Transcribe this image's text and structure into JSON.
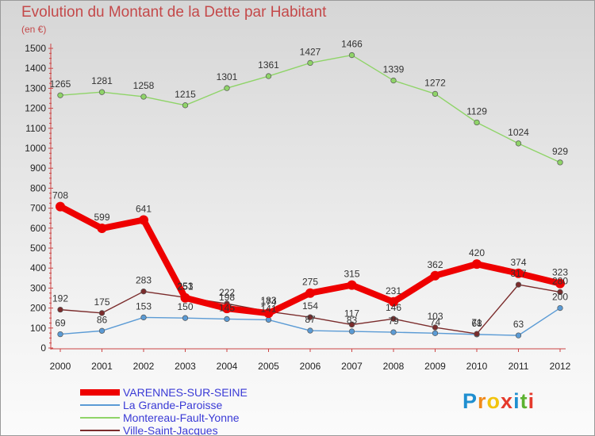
{
  "chart_data": {
    "type": "line",
    "title": "Evolution du Montant de la Dette par Habitant",
    "subtitle": "(en €)",
    "categories": [
      "2000",
      "2001",
      "2002",
      "2003",
      "2004",
      "2005",
      "2006",
      "2007",
      "2008",
      "2009",
      "2010",
      "2011",
      "2012"
    ],
    "ylim": [
      0,
      1500
    ],
    "yticks": [
      0,
      100,
      200,
      300,
      400,
      500,
      600,
      700,
      800,
      900,
      1000,
      1100,
      1200,
      1300,
      1400,
      1500
    ],
    "grid": false,
    "legend_position": "bottom-left",
    "series": [
      {
        "name": "VARENNES-SUR-SEINE",
        "color": "#ee0000",
        "values": [
          708,
          599,
          641,
          251,
          198,
          174,
          275,
          315,
          231,
          362,
          420,
          374,
          323
        ]
      },
      {
        "name": "La Grande-Paroisse",
        "color": "#5b9bd5",
        "values": [
          69,
          86,
          153,
          150,
          145,
          141,
          87,
          83,
          79,
          74,
          68,
          63,
          200
        ]
      },
      {
        "name": "Montereau-Fault-Yonne",
        "color": "#8fd468",
        "values": [
          1265,
          1281,
          1258,
          1215,
          1301,
          1361,
          1427,
          1466,
          1339,
          1272,
          1129,
          1024,
          929
        ]
      },
      {
        "name": "Ville-Saint-Jacques",
        "color": "#7b2c2c",
        "values": [
          192,
          175,
          283,
          253,
          222,
          183,
          154,
          117,
          146,
          103,
          71,
          317,
          280
        ]
      }
    ]
  },
  "logo": {
    "letters": [
      "P",
      "r",
      "o",
      "x",
      "i",
      "t",
      "i"
    ],
    "colors": [
      "#1f8fd0",
      "#f08a1c",
      "#f2c40f",
      "#e53a2c",
      "#1f8fd0",
      "#5cb230",
      "#e53a2c"
    ]
  }
}
